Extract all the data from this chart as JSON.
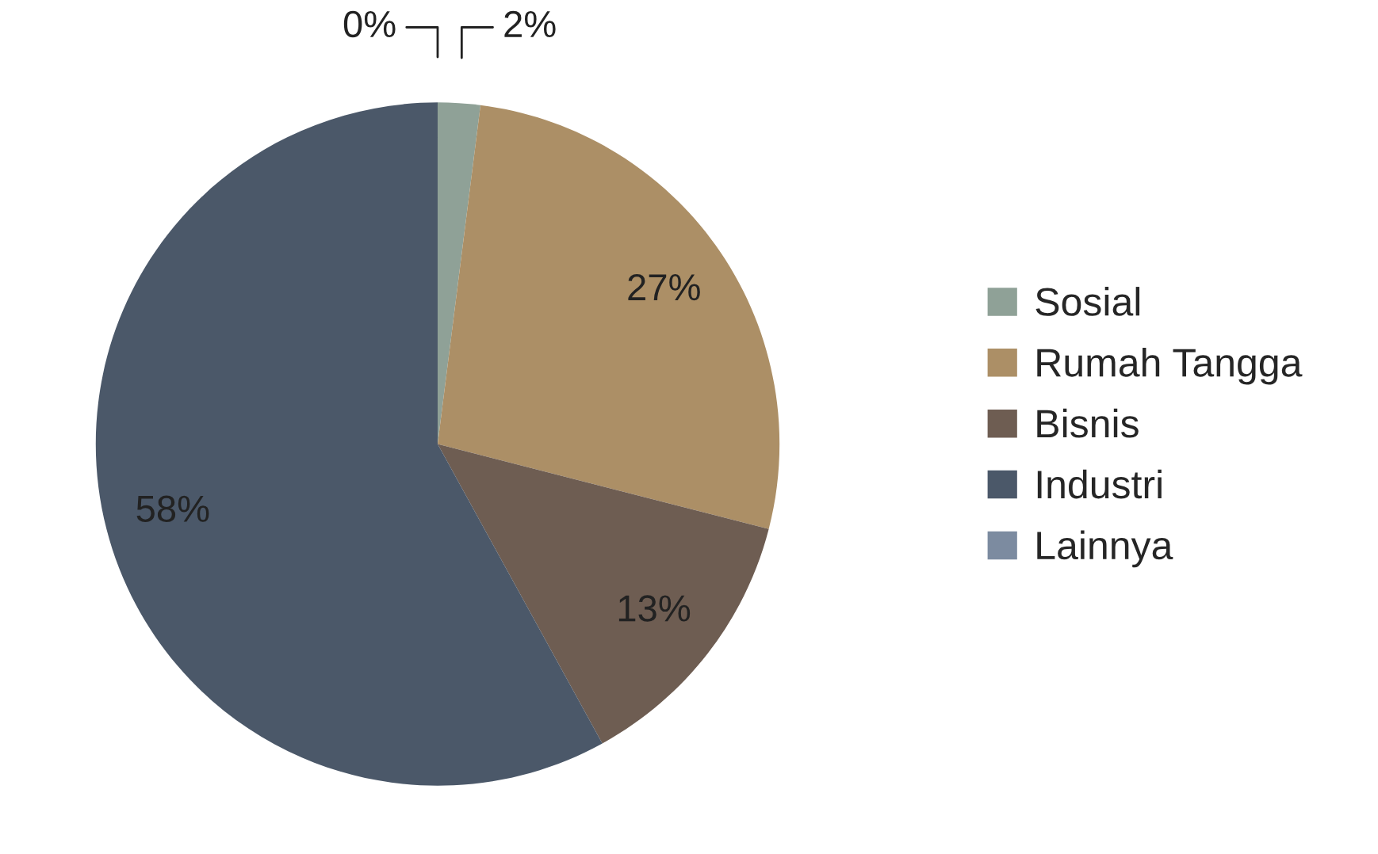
{
  "chart_data": {
    "type": "pie",
    "categories": [
      "Sosial",
      "Rumah Tangga",
      "Bisnis",
      "Industri",
      "Lainnya"
    ],
    "values": [
      2,
      27,
      13,
      58,
      0
    ],
    "colors": [
      "#8fa197",
      "#ac8f66",
      "#6e5d52",
      "#4b5869",
      "#7c8ba0"
    ],
    "value_labels": [
      "2%",
      "27%",
      "13%",
      "58%",
      "0%"
    ],
    "legend": "right"
  }
}
